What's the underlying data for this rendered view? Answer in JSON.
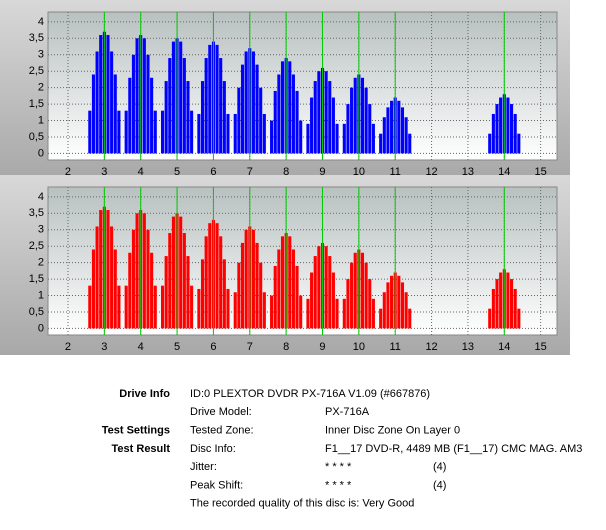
{
  "chart_data": [
    {
      "type": "bar",
      "color": "#0000ff",
      "marker_color": "#00cc00",
      "grid": true,
      "xlim": [
        1.45,
        15.45
      ],
      "ylim": [
        -0.2,
        4.3
      ],
      "xticks": [
        2,
        3,
        4,
        5,
        6,
        7,
        8,
        9,
        10,
        11,
        12,
        13,
        14,
        15
      ],
      "yticks": [
        0,
        {
          "value": 0.5,
          "label": "0,5"
        },
        1,
        {
          "value": 1.5,
          "label": "1,5"
        },
        2,
        {
          "value": 2.5,
          "label": "2,5"
        },
        3,
        {
          "value": 3.5,
          "label": "3,5"
        },
        4
      ],
      "markers": [
        3,
        4,
        5,
        6,
        7,
        8,
        9,
        10,
        11,
        14
      ],
      "x": [
        2.6,
        2.7,
        2.8,
        2.9,
        3.0,
        3.1,
        3.2,
        3.3,
        3.4,
        3.5,
        3.6,
        3.7,
        3.8,
        3.9,
        4.0,
        4.1,
        4.2,
        4.3,
        4.4,
        4.5,
        4.6,
        4.7,
        4.8,
        4.9,
        5.0,
        5.1,
        5.2,
        5.3,
        5.4,
        5.5,
        5.6,
        5.7,
        5.8,
        5.9,
        6.0,
        6.1,
        6.2,
        6.3,
        6.4,
        6.5,
        6.6,
        6.7,
        6.8,
        6.9,
        7.0,
        7.1,
        7.2,
        7.3,
        7.4,
        7.5,
        7.6,
        7.7,
        7.8,
        7.9,
        8.0,
        8.1,
        8.2,
        8.3,
        8.4,
        8.5,
        8.6,
        8.7,
        8.8,
        8.9,
        9.0,
        9.1,
        9.2,
        9.3,
        9.4,
        9.5,
        9.6,
        9.7,
        9.8,
        9.9,
        10.0,
        10.1,
        10.2,
        10.3,
        10.4,
        10.5,
        10.6,
        10.7,
        10.8,
        10.9,
        11.0,
        11.1,
        11.2,
        11.3,
        11.4,
        11.5,
        13.6,
        13.7,
        13.8,
        13.9,
        14.0,
        14.1,
        14.2,
        14.3,
        14.4,
        14.5
      ],
      "values": [
        1.3,
        2.4,
        3.1,
        3.6,
        3.7,
        3.6,
        3.1,
        2.4,
        1.3,
        0,
        1.3,
        2.3,
        3.0,
        3.5,
        3.6,
        3.5,
        3.0,
        2.3,
        1.3,
        0,
        1.3,
        2.2,
        2.9,
        3.4,
        3.5,
        3.4,
        2.9,
        2.2,
        1.3,
        0,
        1.2,
        2.2,
        2.9,
        3.3,
        3.4,
        3.3,
        2.9,
        2.2,
        1.2,
        0,
        1.2,
        2.0,
        2.7,
        3.1,
        3.2,
        3.1,
        2.7,
        2.0,
        1.2,
        0,
        1.0,
        1.9,
        2.4,
        2.8,
        2.9,
        2.8,
        2.4,
        1.9,
        1.0,
        0,
        0.9,
        1.7,
        2.2,
        2.5,
        2.6,
        2.5,
        2.2,
        1.7,
        0.9,
        0,
        0.9,
        1.5,
        2.0,
        2.3,
        2.4,
        2.3,
        2.0,
        1.5,
        0.9,
        0,
        0.6,
        1.1,
        1.4,
        1.6,
        1.7,
        1.6,
        1.4,
        1.1,
        0.6,
        0,
        0.6,
        1.2,
        1.5,
        1.7,
        1.8,
        1.7,
        1.5,
        1.2,
        0.6,
        0
      ]
    },
    {
      "type": "bar",
      "color": "#ff0000",
      "marker_color": "#00cc00",
      "grid": true,
      "xlim": [
        1.45,
        15.45
      ],
      "ylim": [
        -0.2,
        4.3
      ],
      "xticks": [
        2,
        3,
        4,
        5,
        6,
        7,
        8,
        9,
        10,
        11,
        12,
        13,
        14,
        15
      ],
      "yticks": [
        0,
        {
          "value": 0.5,
          "label": "0,5"
        },
        1,
        {
          "value": 1.5,
          "label": "1,5"
        },
        2,
        {
          "value": 2.5,
          "label": "2,5"
        },
        3,
        {
          "value": 3.5,
          "label": "3,5"
        },
        4
      ],
      "markers": [
        3,
        4,
        5,
        6,
        7,
        8,
        9,
        10,
        11,
        14
      ],
      "x": [
        2.6,
        2.7,
        2.8,
        2.9,
        3.0,
        3.1,
        3.2,
        3.3,
        3.4,
        3.5,
        3.6,
        3.7,
        3.8,
        3.9,
        4.0,
        4.1,
        4.2,
        4.3,
        4.4,
        4.5,
        4.6,
        4.7,
        4.8,
        4.9,
        5.0,
        5.1,
        5.2,
        5.3,
        5.4,
        5.5,
        5.6,
        5.7,
        5.8,
        5.9,
        6.0,
        6.1,
        6.2,
        6.3,
        6.4,
        6.5,
        6.6,
        6.7,
        6.8,
        6.9,
        7.0,
        7.1,
        7.2,
        7.3,
        7.4,
        7.5,
        7.6,
        7.7,
        7.8,
        7.9,
        8.0,
        8.1,
        8.2,
        8.3,
        8.4,
        8.5,
        8.6,
        8.7,
        8.8,
        8.9,
        9.0,
        9.1,
        9.2,
        9.3,
        9.4,
        9.5,
        9.6,
        9.7,
        9.8,
        9.9,
        10.0,
        10.1,
        10.2,
        10.3,
        10.4,
        10.5,
        10.6,
        10.7,
        10.8,
        10.9,
        11.0,
        11.1,
        11.2,
        11.3,
        11.4,
        11.5,
        13.6,
        13.7,
        13.8,
        13.9,
        14.0,
        14.1,
        14.2,
        14.3,
        14.4,
        14.5
      ],
      "values": [
        1.3,
        2.4,
        3.1,
        3.6,
        3.7,
        3.6,
        3.1,
        2.4,
        1.3,
        0,
        1.3,
        2.3,
        3.0,
        3.5,
        3.6,
        3.5,
        3.0,
        2.3,
        1.3,
        0,
        1.3,
        2.2,
        2.9,
        3.4,
        3.5,
        3.4,
        2.9,
        2.2,
        1.3,
        0,
        1.2,
        2.1,
        2.8,
        3.2,
        3.3,
        3.2,
        2.8,
        2.1,
        1.2,
        0,
        1.1,
        2.0,
        2.6,
        3.0,
        3.1,
        3.0,
        2.6,
        2.0,
        1.1,
        0,
        1.0,
        1.9,
        2.4,
        2.8,
        2.9,
        2.8,
        2.4,
        1.9,
        1.0,
        0,
        0.9,
        1.7,
        2.2,
        2.5,
        2.6,
        2.5,
        2.2,
        1.7,
        0.9,
        0,
        0.9,
        1.5,
        2.0,
        2.3,
        2.4,
        2.3,
        2.0,
        1.5,
        0.9,
        0,
        0.6,
        1.1,
        1.4,
        1.6,
        1.7,
        1.6,
        1.4,
        1.1,
        0.6,
        0,
        0.6,
        1.2,
        1.5,
        1.7,
        1.8,
        1.7,
        1.5,
        1.2,
        0.6,
        0
      ]
    }
  ],
  "info": [
    {
      "section": "Drive Info",
      "value": "ID:0 PLEXTOR DVDR PX-716A V1.09 (#667876)"
    },
    {
      "field": "Drive Model:",
      "value": "PX-716A"
    },
    {
      "section": "Test Settings",
      "field": "Tested Zone:",
      "value": "Inner Disc Zone On Layer 0"
    },
    {
      "section": "Test Result",
      "field": "Disc Info:",
      "value": "F1__17 DVD-R, 4489 MB (F1__17) CMC MAG. AM3"
    },
    {
      "field": "Jitter:",
      "value": "* * * *",
      "score": "(4)"
    },
    {
      "field": "Peak Shift:",
      "value": "* * * *",
      "score": "(4)"
    },
    {
      "value": "The recorded quality of this disc is: Very Good"
    }
  ]
}
